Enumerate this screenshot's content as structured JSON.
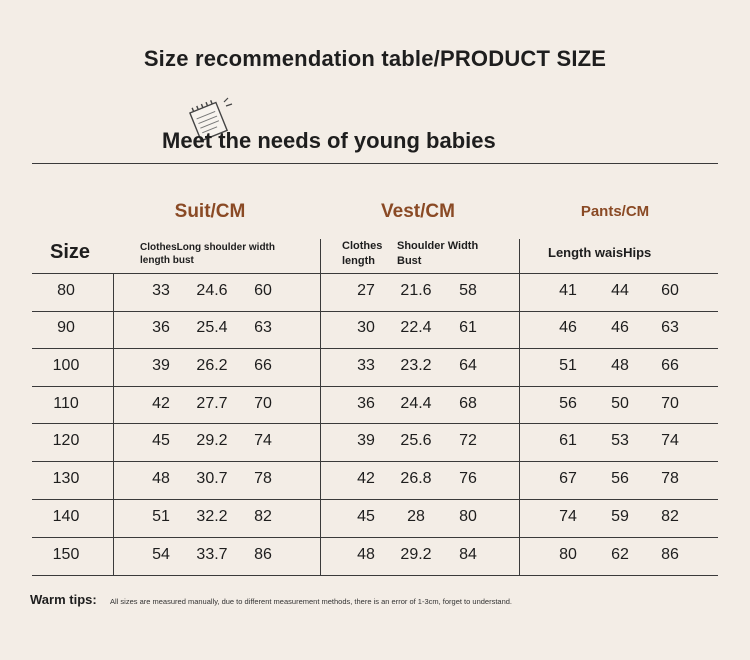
{
  "title": "Size recommendation table/PRODUCT SIZE",
  "subtitle": "Meet the needs of young babies",
  "icons": {
    "notepad": "notepad-icon"
  },
  "colors": {
    "accent": "#8a4a25",
    "background": "#f3ede6"
  },
  "groups": {
    "suit": "Suit/CM",
    "vest": "Vest/CM",
    "pants": "Pants/CM"
  },
  "headers": {
    "size": "Size",
    "suit_line1": "ClothesLong shoulder width",
    "suit_line2": "length bust",
    "vest_col1_line1": "Clothes",
    "vest_col1_line2": "length",
    "vest_col2_line1": "Shoulder Width",
    "vest_col2_line2": "Bust",
    "pants": "Length waisHips"
  },
  "rows": [
    {
      "size": "80",
      "suit": [
        "33",
        "24.6",
        "60"
      ],
      "vest": [
        "27",
        "21.6",
        "58"
      ],
      "pants": [
        "41",
        "44",
        "60"
      ]
    },
    {
      "size": "90",
      "suit": [
        "36",
        "25.4",
        "63"
      ],
      "vest": [
        "30",
        "22.4",
        "61"
      ],
      "pants": [
        "46",
        "46",
        "63"
      ]
    },
    {
      "size": "100",
      "suit": [
        "39",
        "26.2",
        "66"
      ],
      "vest": [
        "33",
        "23.2",
        "64"
      ],
      "pants": [
        "51",
        "48",
        "66"
      ]
    },
    {
      "size": "110",
      "suit": [
        "42",
        "27.7",
        "70"
      ],
      "vest": [
        "36",
        "24.4",
        "68"
      ],
      "pants": [
        "56",
        "50",
        "70"
      ]
    },
    {
      "size": "120",
      "suit": [
        "45",
        "29.2",
        "74"
      ],
      "vest": [
        "39",
        "25.6",
        "72"
      ],
      "pants": [
        "61",
        "53",
        "74"
      ]
    },
    {
      "size": "130",
      "suit": [
        "48",
        "30.7",
        "78"
      ],
      "vest": [
        "42",
        "26.8",
        "76"
      ],
      "pants": [
        "67",
        "56",
        "78"
      ]
    },
    {
      "size": "140",
      "suit": [
        "51",
        "32.2",
        "82"
      ],
      "vest": [
        "45",
        "28",
        "80"
      ],
      "pants": [
        "74",
        "59",
        "82"
      ]
    },
    {
      "size": "150",
      "suit": [
        "54",
        "33.7",
        "86"
      ],
      "vest": [
        "48",
        "29.2",
        "84"
      ],
      "pants": [
        "80",
        "62",
        "86"
      ]
    }
  ],
  "tips": {
    "label": "Warm tips:",
    "text": "All sizes are measured manually, due to different measurement methods, there is an error of 1-3cm, forget to understand."
  }
}
